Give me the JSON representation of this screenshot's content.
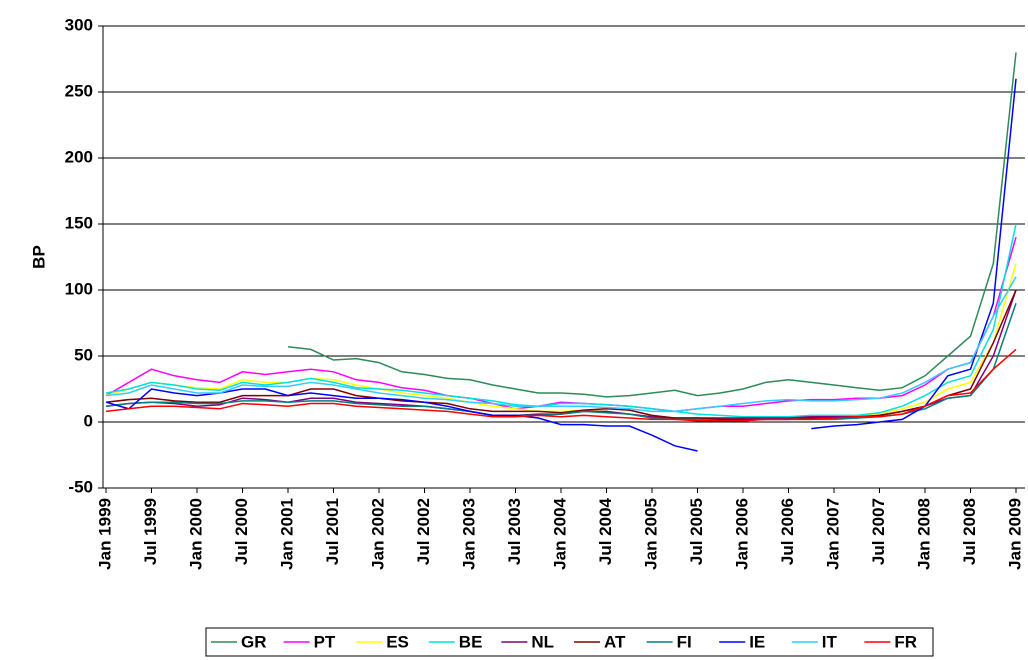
{
  "chart_data": {
    "type": "line",
    "y_label": "BP",
    "categories": [
      "Jan 1999",
      null,
      "Jul 1999",
      null,
      "Jan 2000",
      null,
      "Jul 2000",
      null,
      "Jan 2001",
      null,
      "Jul 2001",
      null,
      "Jan 2002",
      null,
      "Jul 2002",
      null,
      "Jan 2003",
      null,
      "Jul 2003",
      null,
      "Jan 2004",
      null,
      "Jul 2004",
      null,
      "Jan 2005",
      null,
      "Jul 2005",
      null,
      "Jan 2006",
      null,
      "Jul 2006",
      null,
      "Jan 2007",
      null,
      "Jul 2007",
      null,
      "Jan 2008",
      null,
      "Jul 2008",
      null,
      "Jan 2009"
    ],
    "ylim": [
      -50,
      300
    ],
    "yticks": [
      -50,
      0,
      50,
      100,
      150,
      200,
      250,
      300
    ],
    "grid": true,
    "series": [
      {
        "name": "GR",
        "color": "#2e8b57",
        "values": [
          null,
          null,
          null,
          null,
          null,
          null,
          null,
          null,
          57,
          55,
          47,
          48,
          45,
          38,
          36,
          33,
          32,
          28,
          25,
          22,
          22,
          21,
          19,
          20,
          22,
          24,
          20,
          22,
          25,
          30,
          32,
          30,
          28,
          26,
          24,
          26,
          35,
          50,
          65,
          120,
          280
        ]
      },
      {
        "name": "PT",
        "color": "#ff00ff",
        "values": [
          20,
          30,
          40,
          35,
          32,
          30,
          38,
          36,
          38,
          40,
          38,
          32,
          30,
          26,
          24,
          20,
          18,
          14,
          10,
          12,
          15,
          14,
          13,
          12,
          10,
          8,
          10,
          12,
          12,
          14,
          16,
          17,
          17,
          18,
          18,
          20,
          28,
          40,
          45,
          80,
          140
        ]
      },
      {
        "name": "ES",
        "color": "#ffff00",
        "values": [
          20,
          25,
          30,
          28,
          26,
          25,
          32,
          30,
          30,
          33,
          32,
          28,
          25,
          22,
          20,
          18,
          15,
          12,
          10,
          8,
          8,
          9,
          8,
          6,
          3,
          2,
          3,
          3,
          3,
          4,
          4,
          4,
          5,
          5,
          6,
          10,
          15,
          25,
          30,
          60,
          120
        ]
      },
      {
        "name": "BE",
        "color": "#00e0e0",
        "values": [
          22,
          25,
          30,
          28,
          25,
          24,
          30,
          28,
          30,
          33,
          30,
          26,
          25,
          24,
          22,
          20,
          18,
          16,
          13,
          12,
          14,
          14,
          13,
          12,
          10,
          8,
          6,
          5,
          4,
          4,
          4,
          5,
          5,
          5,
          7,
          12,
          20,
          30,
          35,
          70,
          150
        ]
      },
      {
        "name": "NL",
        "color": "#800080",
        "values": [
          12,
          14,
          15,
          14,
          12,
          13,
          18,
          17,
          15,
          18,
          18,
          15,
          14,
          13,
          12,
          10,
          8,
          5,
          5,
          6,
          6,
          8,
          8,
          6,
          4,
          3,
          3,
          3,
          3,
          3,
          3,
          4,
          4,
          4,
          5,
          8,
          12,
          18,
          20,
          50,
          100
        ]
      },
      {
        "name": "AT",
        "color": "#800000",
        "values": [
          15,
          17,
          18,
          16,
          15,
          15,
          20,
          20,
          20,
          25,
          25,
          20,
          18,
          16,
          15,
          14,
          10,
          8,
          8,
          8,
          7,
          9,
          10,
          9,
          5,
          3,
          3,
          2,
          2,
          2,
          2,
          3,
          3,
          3,
          5,
          8,
          12,
          20,
          25,
          60,
          100
        ]
      },
      {
        "name": "FI",
        "color": "#008080",
        "values": [
          12,
          14,
          15,
          15,
          14,
          14,
          16,
          16,
          15,
          16,
          16,
          14,
          13,
          12,
          12,
          10,
          8,
          5,
          5,
          5,
          6,
          8,
          7,
          6,
          3,
          2,
          2,
          1,
          1,
          2,
          2,
          2,
          2,
          3,
          4,
          6,
          10,
          18,
          20,
          40,
          90
        ]
      },
      {
        "name": "IE",
        "color": "#0000ff",
        "values": [
          15,
          10,
          25,
          22,
          20,
          22,
          25,
          25,
          20,
          22,
          20,
          18,
          18,
          17,
          15,
          12,
          8,
          5,
          5,
          3,
          -2,
          -2,
          -3,
          -3,
          -10,
          -18,
          -22,
          null,
          null,
          null,
          null,
          -5,
          -3,
          -2,
          0,
          2,
          12,
          35,
          40,
          90,
          260
        ]
      },
      {
        "name": "IT",
        "color": "#33ccff",
        "values": [
          20,
          22,
          28,
          25,
          22,
          22,
          28,
          27,
          27,
          30,
          28,
          25,
          22,
          20,
          18,
          17,
          15,
          14,
          12,
          12,
          12,
          12,
          11,
          10,
          8,
          8,
          10,
          12,
          14,
          16,
          17,
          16,
          16,
          17,
          18,
          22,
          30,
          40,
          45,
          80,
          110
        ]
      },
      {
        "name": "FR",
        "color": "#ff0000",
        "values": [
          8,
          10,
          12,
          12,
          11,
          10,
          14,
          13,
          12,
          14,
          14,
          12,
          11,
          10,
          9,
          8,
          6,
          4,
          4,
          5,
          4,
          5,
          4,
          3,
          2,
          2,
          1,
          1,
          1,
          2,
          2,
          2,
          3,
          4,
          4,
          6,
          12,
          20,
          22,
          40,
          55
        ]
      }
    ]
  }
}
